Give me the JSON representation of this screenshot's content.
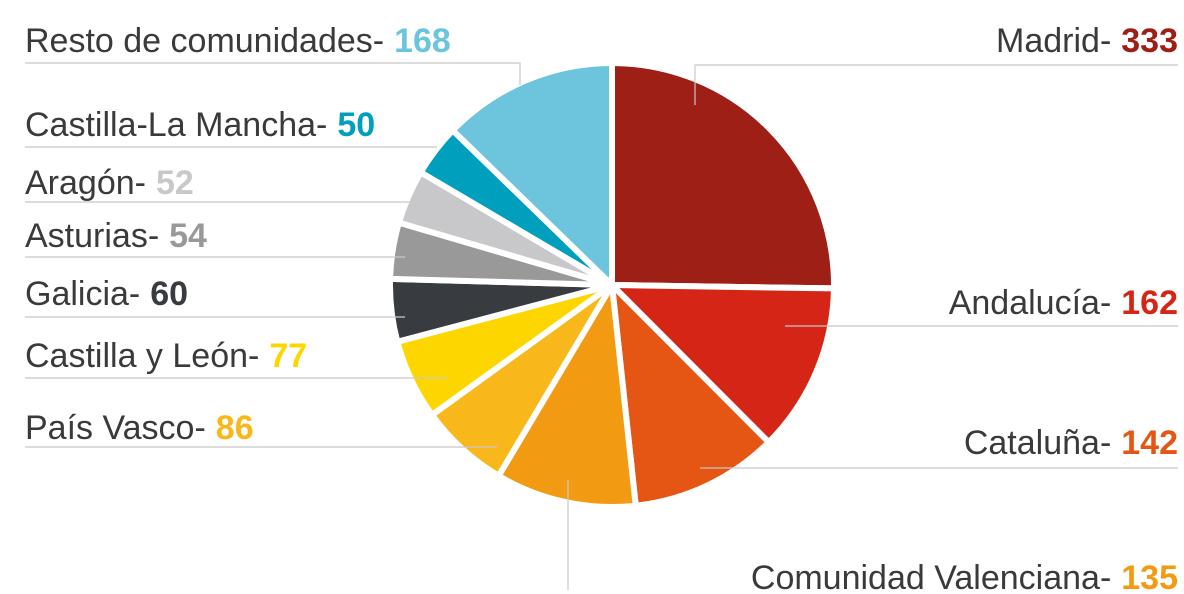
{
  "chart_data": {
    "type": "pie",
    "categories": [
      "Madrid-",
      "Andalucía-",
      "Cataluña-",
      "Comunidad Valenciana-",
      "País Vasco-",
      "Castilla y León-",
      "Galicia-",
      "Asturias-",
      "Aragón-",
      "Castilla-La Mancha-",
      "Resto de comunidades-"
    ],
    "values": [
      333,
      162,
      142,
      135,
      86,
      77,
      60,
      54,
      52,
      50,
      168
    ],
    "colors": [
      "#9e1f16",
      "#d42516",
      "#e55615",
      "#f29a12",
      "#f8b81c",
      "#fdd600",
      "#383b40",
      "#999999",
      "#c8c8ca",
      "#009fbd",
      "#6cc5dc"
    ]
  }
}
